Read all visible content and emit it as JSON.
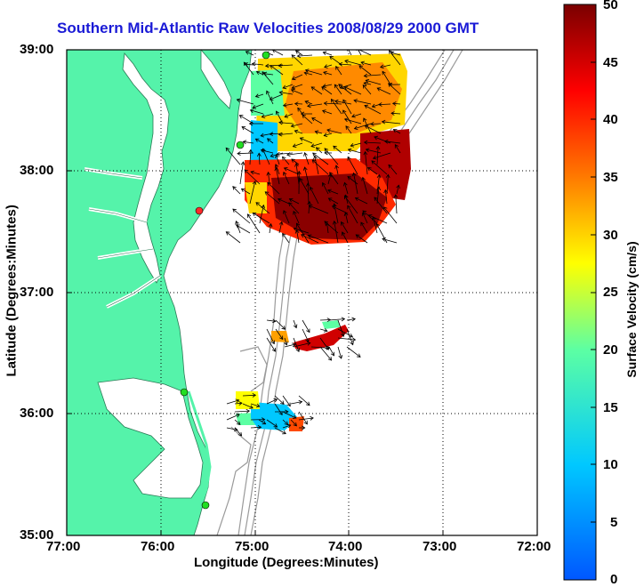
{
  "title": "Southern Mid-Atlantic Raw Velocities 2008/08/29 2000 GMT",
  "axes": {
    "xlabel": "Longitude (Degrees:Minutes)",
    "ylabel": "Latitude (Degrees:Minutes)",
    "xticks": [
      "77:00",
      "76:00",
      "75:00",
      "74:00",
      "73:00",
      "72:00"
    ],
    "yticks": [
      "39:00",
      "38:00",
      "37:00",
      "36:00",
      "35:00"
    ]
  },
  "colorbar": {
    "title": "Surface Velocity (cm/s)",
    "ticks": [
      "50",
      "45",
      "40",
      "35",
      "30",
      "25",
      "20",
      "15",
      "10",
      "5",
      "0"
    ],
    "range": [
      0,
      50
    ],
    "colors": [
      "#0057ff",
      "#00c8ff",
      "#5cffa3",
      "#ffff00",
      "#ff7a00",
      "#ff0000",
      "#7a0000"
    ]
  },
  "colors": {
    "land": "#55f3aa",
    "ocean": "#ffffff",
    "bathymetry": "#9a9a9a",
    "grid": "#000000",
    "station": "#22dd22",
    "station_alt": "#ff2a2a"
  }
}
